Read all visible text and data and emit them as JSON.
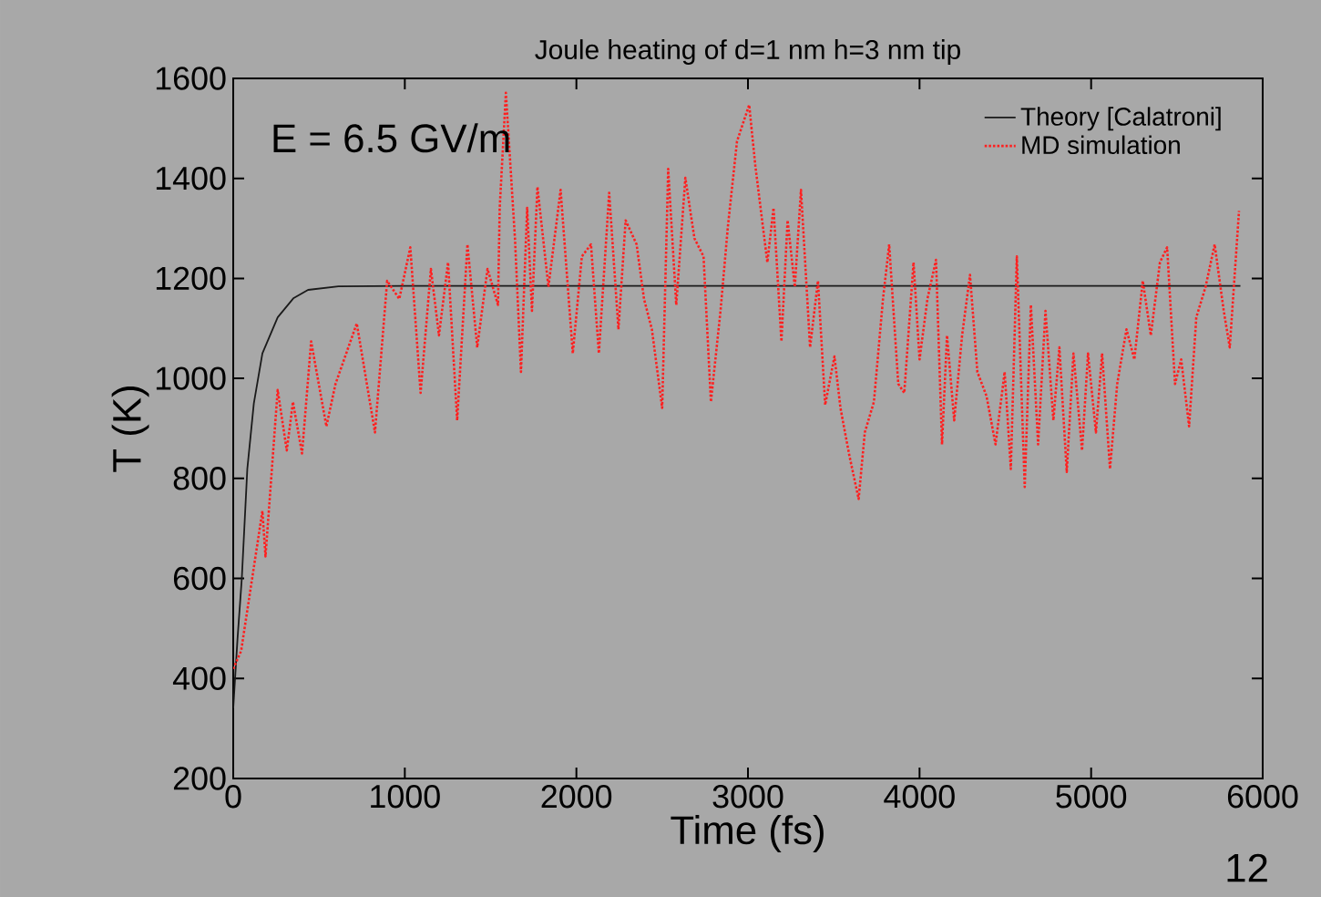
{
  "chart_data": {
    "type": "line",
    "title": "Joule heating of d=1 nm h=3 nm tip",
    "xlabel": "Time (fs)",
    "ylabel": "T (K)",
    "annotations": [
      "E = 6.5 GV/m",
      "12"
    ],
    "xlim": [
      0,
      6000
    ],
    "xticks": [
      0,
      1000,
      2000,
      3000,
      4000,
      5000,
      6000
    ],
    "ylim": [
      200,
      1600
    ],
    "yticks": [
      200,
      400,
      600,
      800,
      1000,
      1200,
      1400,
      1600
    ],
    "grid": false,
    "legend": "top right",
    "marker": "none",
    "series": [
      {
        "name": "Theory [Calatroni]",
        "color": "#1a1a1a",
        "line_style": "solid",
        "x": [
          0,
          25,
          50,
          82,
          120,
          170,
          259,
          350,
          436,
          613,
          1000,
          5870
        ],
        "values": [
          340,
          480,
          600,
          819,
          950,
          1050,
          1122,
          1160,
          1177,
          1184,
          1185,
          1185
        ]
      },
      {
        "name": "MD simulation",
        "color": "#ff2020",
        "line_style": "dotted",
        "x": [
          0,
          46,
          170,
          188,
          259,
          312,
          348,
          401,
          454,
          543,
          596,
          720,
          826,
          897,
          968,
          1032,
          1092,
          1152,
          1199,
          1252,
          1305,
          1365,
          1422,
          1482,
          1543,
          1553,
          1589,
          1642,
          1677,
          1713,
          1741,
          1773,
          1837,
          1908,
          1979,
          2032,
          2085,
          2131,
          2191,
          2245,
          2287,
          2351,
          2394,
          2440,
          2500,
          2535,
          2582,
          2635,
          2688,
          2741,
          2784,
          2840,
          2883,
          2936,
          3007,
          3043,
          3113,
          3149,
          3195,
          3231,
          3273,
          3309,
          3362,
          3408,
          3450,
          3504,
          3539,
          3592,
          3645,
          3681,
          3734,
          3787,
          3823,
          3876,
          3911,
          3965,
          4000,
          4046,
          4096,
          4131,
          4160,
          4202,
          4248,
          4294,
          4337,
          4390,
          4443,
          4496,
          4532,
          4567,
          4613,
          4649,
          4691,
          4734,
          4780,
          4815,
          4858,
          4897,
          4947,
          4982,
          5028,
          5064,
          5110,
          5152,
          5206,
          5252,
          5301,
          5348,
          5401,
          5443,
          5489,
          5525,
          5571,
          5613,
          5667,
          5720,
          5773,
          5808,
          5862
        ],
        "values": [
          419,
          455,
          735,
          644,
          977,
          856,
          953,
          850,
          1074,
          904,
          989,
          1110,
          892,
          1195,
          1159,
          1262,
          971,
          1219,
          1086,
          1232,
          916,
          1268,
          1062,
          1219,
          1147,
          1341,
          1571,
          1280,
          1013,
          1341,
          1135,
          1383,
          1183,
          1377,
          1050,
          1244,
          1268,
          1050,
          1371,
          1098,
          1316,
          1268,
          1159,
          1098,
          941,
          1419,
          1147,
          1401,
          1280,
          1244,
          953,
          1135,
          1304,
          1474,
          1547,
          1425,
          1232,
          1341,
          1074,
          1316,
          1183,
          1377,
          1062,
          1195,
          947,
          1044,
          941,
          844,
          759,
          892,
          953,
          1159,
          1268,
          989,
          971,
          1232,
          1038,
          1159,
          1237,
          868,
          1086,
          916,
          1086,
          1207,
          1013,
          965,
          868,
          1013,
          819,
          1244,
          783,
          1147,
          868,
          1135,
          916,
          1062,
          813,
          1050,
          856,
          1050,
          892,
          1050,
          819,
          989,
          1098,
          1038,
          1195,
          1086,
          1232,
          1262,
          989,
          1038,
          904,
          1122,
          1183,
          1268,
          1135,
          1062,
          1335
        ]
      }
    ]
  }
}
